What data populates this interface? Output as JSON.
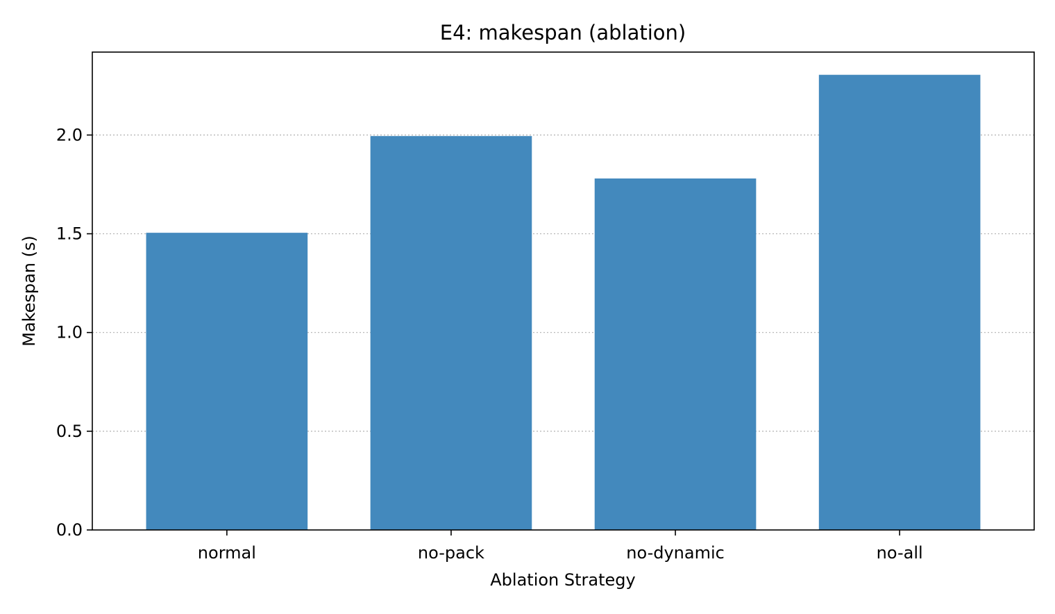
{
  "chart_data": {
    "type": "bar",
    "title": "E4: makespan (ablation)",
    "xlabel": "Ablation Strategy",
    "ylabel": "Makespan (s)",
    "categories": [
      "normal",
      "no-pack",
      "no-dynamic",
      "no-all"
    ],
    "values": [
      1.505,
      1.995,
      1.78,
      2.305
    ],
    "ylim": [
      0,
      2.42
    ],
    "yticks": [
      0.0,
      0.5,
      1.0,
      1.5,
      2.0
    ],
    "ytick_labels": [
      "0.0",
      "0.5",
      "1.0",
      "1.5",
      "2.0"
    ],
    "grid": "y-dotted",
    "legend": "none",
    "bar_color": "#4389bd",
    "grid_color": "#b0b0b0"
  }
}
